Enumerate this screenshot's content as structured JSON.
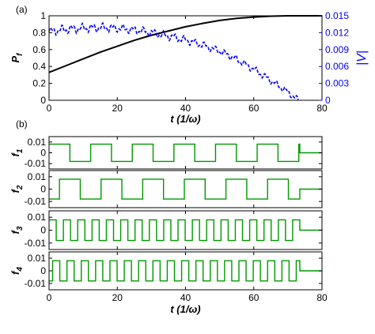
{
  "chart_data": [
    {
      "panel_label": "(a)",
      "type": "line",
      "xlabel": "t (1/ω)",
      "xlim": [
        0,
        80
      ],
      "xticks": [
        "0",
        "20",
        "40",
        "60",
        "80"
      ],
      "ylabel_left": "P_f",
      "ylabel_left_sym": "P",
      "ylabel_left_sub": "f",
      "ylim_left": [
        0,
        1
      ],
      "yticks_left": [
        "0",
        "0.2",
        "0.4",
        "0.6",
        "0.8",
        "1"
      ],
      "ylabel_right": "|V|",
      "ylim_right": [
        0,
        0.015
      ],
      "yticks_right": [
        "0",
        "0.003",
        "0.006",
        "0.009",
        "0.012",
        "0.015"
      ],
      "right_axis_color": "#0000ff",
      "series": [
        {
          "axis": "left",
          "style": "solid",
          "color": "#000000",
          "x": [
            0,
            5,
            10,
            15,
            20,
            25,
            30,
            35,
            40,
            45,
            50,
            55,
            60,
            65,
            70,
            73,
            75,
            80
          ],
          "y": [
            0.33,
            0.41,
            0.49,
            0.57,
            0.64,
            0.71,
            0.77,
            0.82,
            0.87,
            0.91,
            0.945,
            0.97,
            0.985,
            0.995,
            1.0,
            1.0,
            1.0,
            1.0
          ]
        },
        {
          "axis": "right",
          "style": "dashed",
          "color": "#0000ff",
          "x": [
            0,
            5,
            10,
            15,
            20,
            25,
            30,
            35,
            40,
            45,
            50,
            55,
            60,
            65,
            70,
            73
          ],
          "y": [
            0.0122,
            0.0126,
            0.0128,
            0.0129,
            0.0128,
            0.0125,
            0.012,
            0.0114,
            0.0107,
            0.0098,
            0.0087,
            0.0073,
            0.0055,
            0.0035,
            0.0015,
            0.0
          ]
        }
      ]
    },
    {
      "panel_label": "(b)",
      "type": "line",
      "xlabel": "t (1/ω)",
      "xlim": [
        0,
        80
      ],
      "xticks": [
        "0",
        "20",
        "40",
        "60",
        "80"
      ],
      "ylim": [
        -0.015,
        0.015
      ],
      "yticks": [
        "0.01",
        "0",
        "-0.01"
      ],
      "line_color": "#009900",
      "series": [
        {
          "name": "f_1",
          "sym": "f",
          "sub": "1",
          "amplitude": 0.008,
          "period": 12.2,
          "phase": 0.0,
          "end": 73.5
        },
        {
          "name": "f_2",
          "sym": "f",
          "sub": "2",
          "amplitude": 0.008,
          "period": 12.2,
          "phase": 3.05,
          "end": 73.5
        },
        {
          "name": "f_3",
          "sym": "f",
          "sub": "3",
          "amplitude": 0.008,
          "period": 4.2,
          "phase": 0.0,
          "end": 73.5
        },
        {
          "name": "f_4",
          "sym": "f",
          "sub": "4",
          "amplitude": 0.008,
          "period": 4.2,
          "phase": 1.05,
          "end": 73.5
        }
      ]
    }
  ]
}
